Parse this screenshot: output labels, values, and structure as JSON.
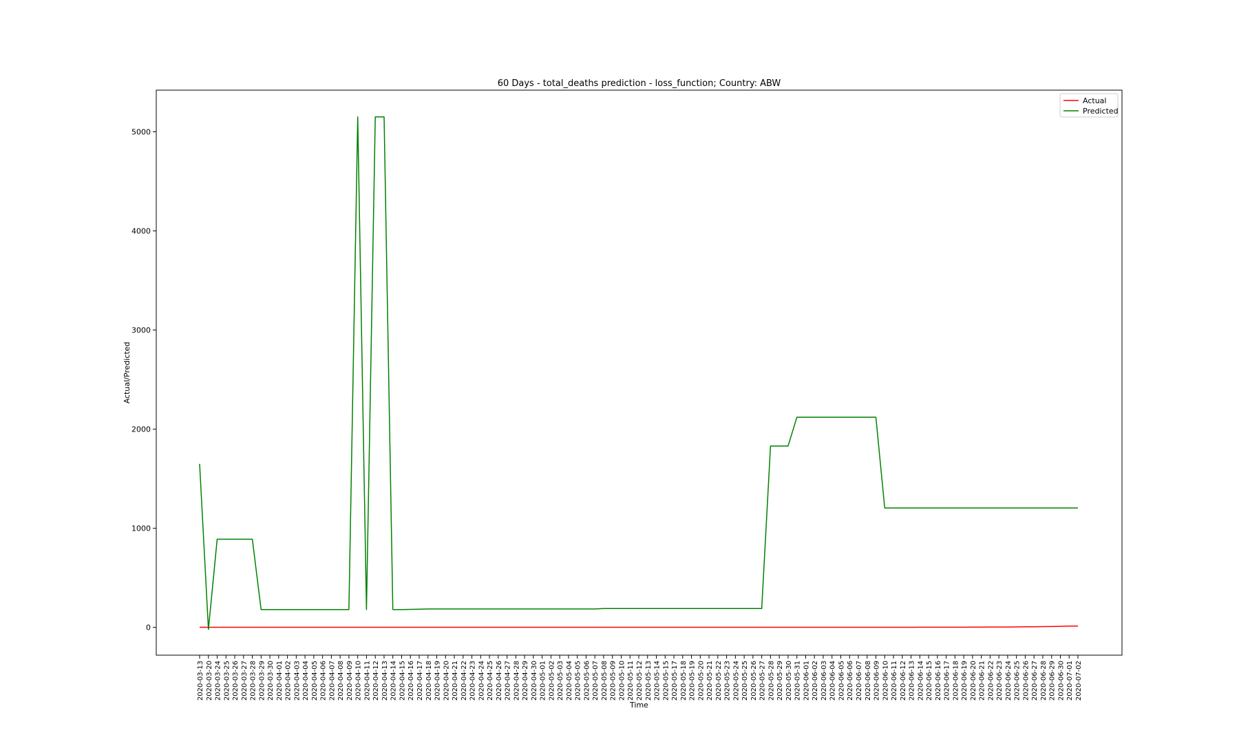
{
  "chart_data": {
    "type": "line",
    "title": "60 Days - total_deaths prediction - loss_function; Country: ABW",
    "xlabel": "Time",
    "ylabel": "Actual/Predicted",
    "ylim": [
      -280,
      5420
    ],
    "yticks": [
      0,
      1000,
      2000,
      3000,
      4000,
      5000
    ],
    "legend_position": "top-right",
    "categories": [
      "2020-03-13",
      "2020-03-20",
      "2020-03-24",
      "2020-03-25",
      "2020-03-26",
      "2020-03-27",
      "2020-03-28",
      "2020-03-29",
      "2020-03-30",
      "2020-04-01",
      "2020-04-02",
      "2020-04-03",
      "2020-04-04",
      "2020-04-05",
      "2020-04-06",
      "2020-04-07",
      "2020-04-08",
      "2020-04-09",
      "2020-04-10",
      "2020-04-11",
      "2020-04-12",
      "2020-04-13",
      "2020-04-14",
      "2020-04-15",
      "2020-04-16",
      "2020-04-17",
      "2020-04-18",
      "2020-04-19",
      "2020-04-20",
      "2020-04-21",
      "2020-04-22",
      "2020-04-23",
      "2020-04-24",
      "2020-04-25",
      "2020-04-26",
      "2020-04-27",
      "2020-04-28",
      "2020-04-29",
      "2020-04-30",
      "2020-05-01",
      "2020-05-02",
      "2020-05-03",
      "2020-05-04",
      "2020-05-05",
      "2020-05-06",
      "2020-05-07",
      "2020-05-08",
      "2020-05-09",
      "2020-05-10",
      "2020-05-11",
      "2020-05-12",
      "2020-05-13",
      "2020-05-14",
      "2020-05-15",
      "2020-05-17",
      "2020-05-18",
      "2020-05-19",
      "2020-05-20",
      "2020-05-21",
      "2020-05-22",
      "2020-05-23",
      "2020-05-24",
      "2020-05-25",
      "2020-05-26",
      "2020-05-27",
      "2020-05-28",
      "2020-05-29",
      "2020-05-30",
      "2020-05-31",
      "2020-06-01",
      "2020-06-02",
      "2020-06-03",
      "2020-06-04",
      "2020-06-05",
      "2020-06-06",
      "2020-06-07",
      "2020-06-08",
      "2020-06-09",
      "2020-06-10",
      "2020-06-11",
      "2020-06-12",
      "2020-06-13",
      "2020-06-14",
      "2020-06-15",
      "2020-06-16",
      "2020-06-17",
      "2020-06-18",
      "2020-06-19",
      "2020-06-20",
      "2020-06-21",
      "2020-06-22",
      "2020-06-23",
      "2020-06-24",
      "2020-06-25",
      "2020-06-26",
      "2020-06-27",
      "2020-06-28",
      "2020-06-29",
      "2020-06-30",
      "2020-07-01",
      "2020-07-02"
    ],
    "series": [
      {
        "name": "Actual",
        "color": "#ff0000",
        "values": [
          1,
          1,
          1,
          1,
          1,
          1,
          1,
          1,
          1,
          1,
          1,
          1,
          1,
          1,
          1,
          1,
          1,
          1,
          1,
          1,
          1,
          1,
          1,
          1,
          1,
          1,
          1,
          1,
          1,
          1,
          1,
          1,
          1,
          1,
          1,
          1,
          1,
          1,
          1,
          1,
          1,
          1,
          1,
          1,
          1,
          1,
          1,
          1,
          1,
          1,
          1,
          1,
          1,
          1,
          1,
          1,
          1,
          1,
          1,
          1,
          1,
          1,
          1,
          1,
          1,
          1,
          1,
          1,
          1,
          1,
          1,
          1,
          1,
          1,
          1,
          1,
          1,
          1,
          1,
          1,
          1,
          1,
          2,
          2,
          2,
          2,
          2,
          2,
          3,
          3,
          4,
          4,
          4,
          5,
          6,
          7,
          8,
          9,
          11,
          13,
          14
        ]
      },
      {
        "name": "Predicted",
        "color": "#008000",
        "values": [
          1650,
          -20,
          890,
          890,
          890,
          890,
          890,
          180,
          180,
          180,
          180,
          180,
          180,
          180,
          180,
          180,
          180,
          180,
          5150,
          180,
          5150,
          5150,
          180,
          180,
          182,
          184,
          186,
          186,
          186,
          186,
          186,
          186,
          186,
          186,
          186,
          186,
          186,
          186,
          186,
          186,
          186,
          186,
          186,
          186,
          186,
          186,
          190,
          190,
          190,
          190,
          190,
          190,
          190,
          190,
          190,
          190,
          190,
          190,
          190,
          190,
          190,
          190,
          190,
          190,
          190,
          1830,
          1830,
          1830,
          2120,
          2120,
          2120,
          2120,
          2120,
          2120,
          2120,
          2120,
          2120,
          2120,
          1205,
          1205,
          1205,
          1205,
          1205,
          1205,
          1205,
          1205,
          1205,
          1205,
          1205,
          1205,
          1205,
          1205,
          1205,
          1205,
          1205,
          1205,
          1205,
          1205,
          1205,
          1205,
          1205
        ]
      }
    ]
  }
}
